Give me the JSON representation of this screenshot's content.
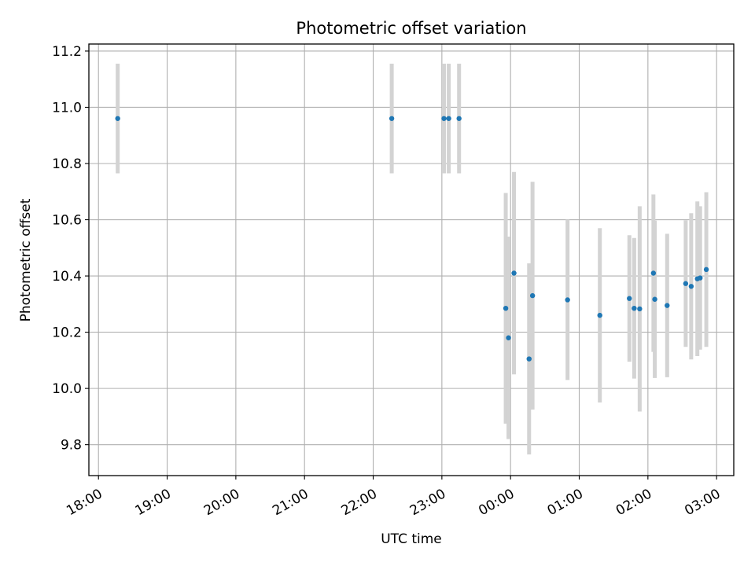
{
  "chart_data": {
    "type": "scatter",
    "title": "Photometric offset variation",
    "xlabel": "UTC time",
    "ylabel": "Photometric offset",
    "grid": true,
    "legend": "none",
    "marker_color": "#1f77b4",
    "errorbar_color": "#d3d3d3",
    "x_tick_labels": [
      "18:00",
      "19:00",
      "20:00",
      "21:00",
      "22:00",
      "23:00",
      "00:00",
      "01:00",
      "02:00",
      "03:00"
    ],
    "y_tick_labels": [
      "9.8",
      "10.0",
      "10.2",
      "10.4",
      "10.6",
      "10.8",
      "11.0",
      "11.2"
    ],
    "xlim_hours": [
      17.86,
      27.25
    ],
    "ylim": [
      9.69,
      11.225
    ],
    "series": [
      {
        "points": [
          {
            "t": 18.28,
            "y": 10.96,
            "err": 0.195
          },
          {
            "t": 22.27,
            "y": 10.96,
            "err": 0.195
          },
          {
            "t": 23.03,
            "y": 10.96,
            "err": 0.195
          },
          {
            "t": 23.1,
            "y": 10.96,
            "err": 0.195
          },
          {
            "t": 23.25,
            "y": 10.96,
            "err": 0.195
          },
          {
            "t": 23.93,
            "y": 10.285,
            "err": 0.41
          },
          {
            "t": 23.97,
            "y": 10.18,
            "err": 0.36
          },
          {
            "t": 24.05,
            "y": 10.41,
            "err": 0.36
          },
          {
            "t": 24.27,
            "y": 10.105,
            "err": 0.34
          },
          {
            "t": 24.32,
            "y": 10.33,
            "err": 0.405
          },
          {
            "t": 24.83,
            "y": 10.315,
            "err": 0.285
          },
          {
            "t": 25.3,
            "y": 10.26,
            "err": 0.31
          },
          {
            "t": 25.73,
            "y": 10.32,
            "err": 0.225
          },
          {
            "t": 25.8,
            "y": 10.285,
            "err": 0.25
          },
          {
            "t": 25.88,
            "y": 10.283,
            "err": 0.365
          },
          {
            "t": 26.08,
            "y": 10.41,
            "err": 0.28
          },
          {
            "t": 26.1,
            "y": 10.317,
            "err": 0.28
          },
          {
            "t": 26.28,
            "y": 10.295,
            "err": 0.255
          },
          {
            "t": 26.55,
            "y": 10.373,
            "err": 0.225
          },
          {
            "t": 26.63,
            "y": 10.363,
            "err": 0.26
          },
          {
            "t": 26.72,
            "y": 10.39,
            "err": 0.275
          },
          {
            "t": 26.76,
            "y": 10.393,
            "err": 0.255
          },
          {
            "t": 26.85,
            "y": 10.423,
            "err": 0.275
          }
        ]
      }
    ]
  }
}
